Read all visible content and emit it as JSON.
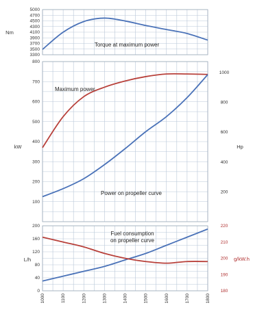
{
  "chart_data": [
    {
      "type": "line",
      "panel": "torque",
      "title": "",
      "annotation": "Torque at maximum power",
      "ylabel": "Nm",
      "ylim": [
        3300,
        5000
      ],
      "y_ticks": [
        "5000",
        "4700",
        "4500",
        "4300",
        "4100",
        "3900",
        "3700",
        "3500",
        "3300"
      ],
      "x": [
        1000,
        1100,
        1200,
        1300,
        1400,
        1500,
        1600,
        1700,
        1800
      ],
      "series": [
        {
          "name": "",
          "color": "#4a72b8",
          "values": [
            3500,
            4150,
            4550,
            4680,
            4570,
            4400,
            4250,
            4100,
            3850
          ]
        }
      ]
    },
    {
      "type": "line",
      "panel": "power",
      "xlabel": "",
      "ylabel": "kW",
      "ylabel_right": "Hp",
      "ylim": [
        0,
        800
      ],
      "y_ticks": [
        "800",
        "700",
        "600",
        "500",
        "400",
        "300",
        "200",
        "100"
      ],
      "y2lim": [
        0,
        1073
      ],
      "y2_ticks": [
        "1000",
        "800",
        "600",
        "400",
        "200"
      ],
      "annotations": [
        "Maximum power",
        "Power on propeller curve"
      ],
      "x": [
        1000,
        1100,
        1200,
        1300,
        1400,
        1500,
        1600,
        1700,
        1800
      ],
      "series": [
        {
          "name": "",
          "color": "#b8403a",
          "values": [
            370,
            525,
            625,
            672,
            703,
            725,
            738,
            738,
            736
          ]
        },
        {
          "name": "",
          "color": "#4a72b8",
          "values": [
            125,
            165,
            215,
            285,
            365,
            450,
            525,
            620,
            735
          ]
        }
      ]
    },
    {
      "type": "line",
      "panel": "fuel",
      "ylabel": "L/h",
      "ylabel_right": "g/kW.h",
      "ylim": [
        0,
        200
      ],
      "y_ticks": [
        "200",
        "160",
        "120",
        "80",
        "40",
        "0"
      ],
      "y2lim": [
        180,
        220
      ],
      "y2_ticks": [
        "220",
        "210",
        "200",
        "190",
        "180"
      ],
      "annotation": "Fuel consumption\non propeller curve",
      "x": [
        1000,
        1100,
        1200,
        1300,
        1400,
        1500,
        1600,
        1700,
        1800
      ],
      "x_ticks": [
        "1000",
        "1100",
        "1200",
        "1300",
        "1400",
        "1500",
        "1600",
        "1700",
        "1800"
      ],
      "series": [
        {
          "name": "",
          "color": "#4a72b8",
          "axis": "left",
          "values": [
            30,
            45,
            60,
            75,
            95,
            115,
            140,
            165,
            190
          ]
        },
        {
          "name": "",
          "color": "#b8403a",
          "axis": "right",
          "values": [
            213,
            210,
            207,
            203,
            200,
            198,
            197,
            198,
            198
          ]
        }
      ]
    }
  ]
}
